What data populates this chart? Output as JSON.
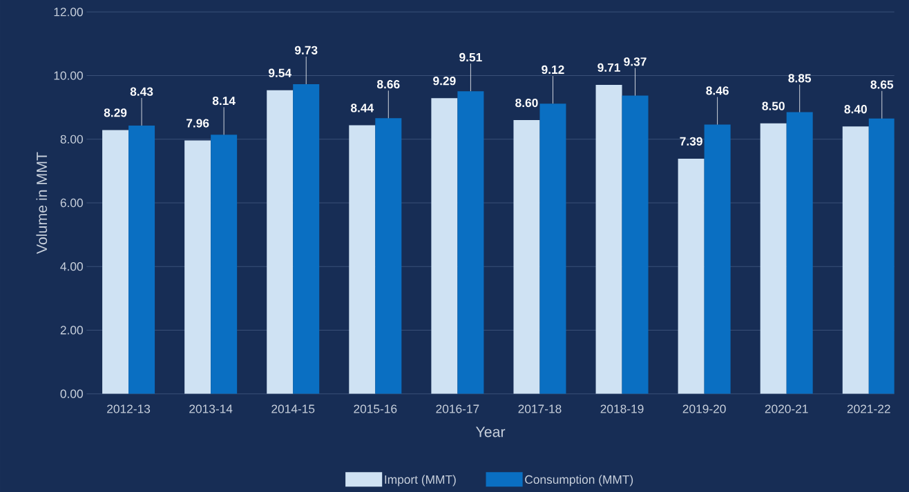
{
  "chart_data": {
    "type": "bar",
    "xlabel": "Year",
    "ylabel": "Volume in MMT",
    "categories": [
      "2012-13",
      "2013-14",
      "2014-15",
      "2015-16",
      "2016-17",
      "2017-18",
      "2018-19",
      "2019-20",
      "2020-21",
      "2021-22"
    ],
    "series": [
      {
        "name": "Import (MMT)",
        "color": "#cfe2f3",
        "values": [
          8.29,
          7.96,
          9.54,
          8.44,
          9.29,
          8.6,
          9.71,
          7.39,
          8.5,
          8.4
        ],
        "value_labels": [
          "8.29",
          "7.96",
          "9.54",
          "8.44",
          "9.29",
          "8.60",
          "9.71",
          "7.39",
          "8.50",
          "8.40"
        ]
      },
      {
        "name": "Consumption (MMT)",
        "color": "#0a6fc2",
        "values": [
          8.43,
          8.14,
          9.73,
          8.66,
          9.51,
          9.12,
          9.37,
          8.46,
          8.85,
          8.65
        ],
        "value_labels": [
          "8.43",
          "8.14",
          "9.73",
          "8.66",
          "9.51",
          "9.12",
          "9.37",
          "8.46",
          "8.85",
          "8.65"
        ]
      }
    ],
    "ylim": [
      0,
      12
    ],
    "yticks": [
      {
        "value": 0,
        "label": "0.00"
      },
      {
        "value": 2,
        "label": "2.00"
      },
      {
        "value": 4,
        "label": "4.00"
      },
      {
        "value": 6,
        "label": "6.00"
      },
      {
        "value": 8,
        "label": "8.00"
      },
      {
        "value": 10,
        "label": "10.00"
      },
      {
        "value": 12,
        "label": "12.00"
      }
    ],
    "grid": "y",
    "legend": "bottom"
  }
}
